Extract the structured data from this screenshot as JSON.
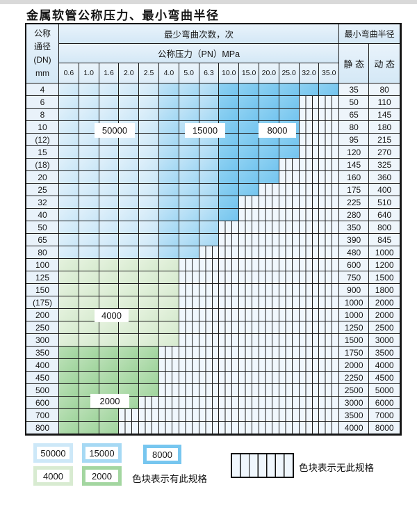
{
  "page": {
    "title": "金属软管公称压力、最小弯曲半径"
  },
  "table": {
    "dn_header_lines": [
      "公称",
      "通径",
      "(DN)",
      "mm"
    ],
    "cycles_header": "最少弯曲次数，次",
    "pressure_header": "公称压力（PN）MPa",
    "radius_header": "最小弯曲半径",
    "static_header": "静 态",
    "dynamic_header": "动 态",
    "pressure_columns": [
      "0.6",
      "1.0",
      "1.6",
      "2.0",
      "2.5",
      "4.0",
      "5.0",
      "6.3",
      "10.0",
      "15.0",
      "20.0",
      "25.0",
      "32.0",
      "35.0"
    ],
    "rows": [
      {
        "dn": "4",
        "colored_through": 14,
        "palette": "blue",
        "static": "35",
        "dynamic": "80"
      },
      {
        "dn": "6",
        "colored_through": 12,
        "palette": "blue",
        "static": "50",
        "dynamic": "110"
      },
      {
        "dn": "8",
        "colored_through": 12,
        "palette": "blue",
        "static": "65",
        "dynamic": "145"
      },
      {
        "dn": "10",
        "colored_through": 12,
        "palette": "blue",
        "static": "80",
        "dynamic": "180"
      },
      {
        "dn": "(12)",
        "colored_through": 12,
        "palette": "blue",
        "static": "95",
        "dynamic": "215"
      },
      {
        "dn": "15",
        "colored_through": 12,
        "palette": "blue",
        "static": "120",
        "dynamic": "270"
      },
      {
        "dn": "(18)",
        "colored_through": 11,
        "palette": "blue",
        "static": "145",
        "dynamic": "325"
      },
      {
        "dn": "20",
        "colored_through": 11,
        "palette": "blue",
        "static": "160",
        "dynamic": "360"
      },
      {
        "dn": "25",
        "colored_through": 10,
        "palette": "blue",
        "static": "175",
        "dynamic": "400"
      },
      {
        "dn": "32",
        "colored_through": 9,
        "palette": "blue",
        "static": "225",
        "dynamic": "510"
      },
      {
        "dn": "40",
        "colored_through": 9,
        "palette": "blue",
        "static": "280",
        "dynamic": "640"
      },
      {
        "dn": "50",
        "colored_through": 8,
        "palette": "blue",
        "static": "350",
        "dynamic": "800"
      },
      {
        "dn": "65",
        "colored_through": 8,
        "palette": "blue",
        "static": "390",
        "dynamic": "845"
      },
      {
        "dn": "80",
        "colored_through": 7,
        "palette": "blue",
        "static": "480",
        "dynamic": "1000"
      },
      {
        "dn": "100",
        "colored_through": 6,
        "palette": "g1",
        "static": "600",
        "dynamic": "1200"
      },
      {
        "dn": "125",
        "colored_through": 6,
        "palette": "g1",
        "static": "750",
        "dynamic": "1500"
      },
      {
        "dn": "150",
        "colored_through": 6,
        "palette": "g1",
        "static": "900",
        "dynamic": "1800"
      },
      {
        "dn": "(175)",
        "colored_through": 6,
        "palette": "g1",
        "static": "1000",
        "dynamic": "2000"
      },
      {
        "dn": "200",
        "colored_through": 6,
        "palette": "g1",
        "static": "1000",
        "dynamic": "2000"
      },
      {
        "dn": "250",
        "colored_through": 6,
        "palette": "g1",
        "static": "1250",
        "dynamic": "2500"
      },
      {
        "dn": "300",
        "colored_through": 6,
        "palette": "g1",
        "static": "1500",
        "dynamic": "3000"
      },
      {
        "dn": "350",
        "colored_through": 5,
        "palette": "g2",
        "static": "1750",
        "dynamic": "3500"
      },
      {
        "dn": "400",
        "colored_through": 5,
        "palette": "g2",
        "static": "2000",
        "dynamic": "4000"
      },
      {
        "dn": "450",
        "colored_through": 5,
        "palette": "g2",
        "static": "2250",
        "dynamic": "4500"
      },
      {
        "dn": "500",
        "colored_through": 5,
        "palette": "g2",
        "static": "2500",
        "dynamic": "5000"
      },
      {
        "dn": "600",
        "colored_through": 4,
        "palette": "g2",
        "static": "3000",
        "dynamic": "6000"
      },
      {
        "dn": "700",
        "colored_through": 3,
        "palette": "g2",
        "static": "3500",
        "dynamic": "7000"
      },
      {
        "dn": "800",
        "colored_through": 3,
        "palette": "g2",
        "static": "4000",
        "dynamic": "8000"
      }
    ],
    "blue_zone_column_ranges": {
      "zone_50000": [
        1,
        5
      ],
      "zone_15000": [
        6,
        8
      ],
      "zone_8000": [
        9,
        14
      ]
    }
  },
  "zone_labels": {
    "l50000": "50000",
    "l15000": "15000",
    "l8000": "8000",
    "l4000": "4000",
    "l2000": "2000"
  },
  "legend": {
    "swatch_50000": "50000",
    "swatch_15000": "15000",
    "swatch_8000": "8000",
    "swatch_4000": "4000",
    "swatch_2000": "2000",
    "has_spec_note": "色块表示有此规格",
    "no_spec_note": "色块表示无此规格"
  },
  "colors": {
    "zone_50000": "#cde8f8",
    "zone_15000": "#a6d9f4",
    "zone_8000": "#77c6ef",
    "zone_4000": "#d8ebd1",
    "zone_2000": "#a3d6a0",
    "hatch_bg": "#f0f7fd",
    "grid_line": "#1b1b1b"
  }
}
